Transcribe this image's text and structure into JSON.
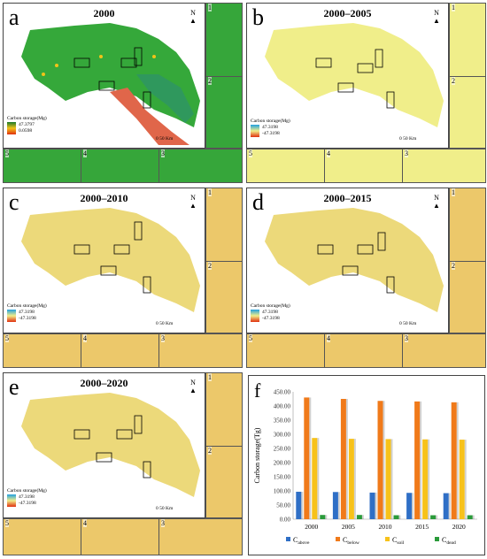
{
  "panels": [
    {
      "id": "a",
      "letter": "a",
      "title": "2000",
      "legend_title": "Carbon storage(Mg)",
      "legend_max": "47.3797",
      "legend_min": "0.0598",
      "scale": "0    50 Km",
      "north": "N",
      "theme": "green",
      "insets": [
        "1",
        "2",
        "3",
        "4",
        "5"
      ],
      "zone_labels": [
        "1",
        "2",
        "3",
        "4",
        "5"
      ]
    },
    {
      "id": "b",
      "letter": "b",
      "title": "2000–2005",
      "legend_title": "Carbon storage(Mg)",
      "legend_max": "47.3198",
      "legend_min": "-47.3198",
      "scale": "0    50 Km",
      "north": "N",
      "theme": "yellow",
      "insets": [
        "1",
        "2",
        "3",
        "4",
        "5"
      ],
      "zone_labels": [
        "1",
        "2",
        "3",
        "4",
        "5"
      ]
    },
    {
      "id": "c",
      "letter": "c",
      "title": "2000–2010",
      "legend_title": "Carbon storage(Mg)",
      "legend_max": "47.3198",
      "legend_min": "-47.3198",
      "scale": "0    50 Km",
      "north": "N",
      "theme": "orange",
      "insets": [
        "1",
        "2",
        "3",
        "4",
        "5"
      ],
      "zone_labels": [
        "1",
        "2",
        "3",
        "4",
        "5"
      ]
    },
    {
      "id": "d",
      "letter": "d",
      "title": "2000–2015",
      "legend_title": "Carbon storage(Mg)",
      "legend_max": "47.3198",
      "legend_min": "-47.3198",
      "scale": "0    50 Km",
      "north": "N",
      "theme": "orange",
      "insets": [
        "1",
        "2",
        "3",
        "4",
        "5"
      ],
      "zone_labels": [
        "1",
        "2",
        "3",
        "4",
        "5"
      ]
    },
    {
      "id": "e",
      "letter": "e",
      "title": "2000–2020",
      "legend_title": "Carbon storage(Mg)",
      "legend_max": "47.3198",
      "legend_min": "-47.3198",
      "scale": "0    50 Km",
      "north": "N",
      "theme": "orange",
      "insets": [
        "1",
        "2",
        "3",
        "4",
        "5"
      ],
      "zone_labels": [
        "1",
        "2",
        "3",
        "4",
        "5"
      ]
    }
  ],
  "chart_panel_letter": "f",
  "chart_data": {
    "type": "bar",
    "categories": [
      "2000",
      "2005",
      "2010",
      "2015",
      "2020"
    ],
    "ylabel": "Carbon storage(Tg)",
    "ylim": [
      0,
      450
    ],
    "yticks": [
      "0.00",
      "50.00",
      "100.00",
      "150.00",
      "200.00",
      "250.00",
      "300.00",
      "350.00",
      "400.00",
      "450.00"
    ],
    "grid": false,
    "legend_placement": "bottom",
    "series": [
      {
        "name": "C",
        "sub": "above",
        "color": "#2f6fc6",
        "values": [
          97,
          96,
          94,
          93,
          92
        ]
      },
      {
        "name": "C",
        "sub": "below",
        "color": "#f07a1a",
        "values": [
          430,
          425,
          418,
          416,
          413
        ]
      },
      {
        "name": "C",
        "sub": "soil",
        "color": "#f7c21a",
        "values": [
          287,
          284,
          283,
          282,
          281
        ]
      },
      {
        "name": "C",
        "sub": "dead",
        "color": "#2a9a3a",
        "values": [
          15,
          15,
          14,
          14,
          14
        ]
      }
    ]
  }
}
